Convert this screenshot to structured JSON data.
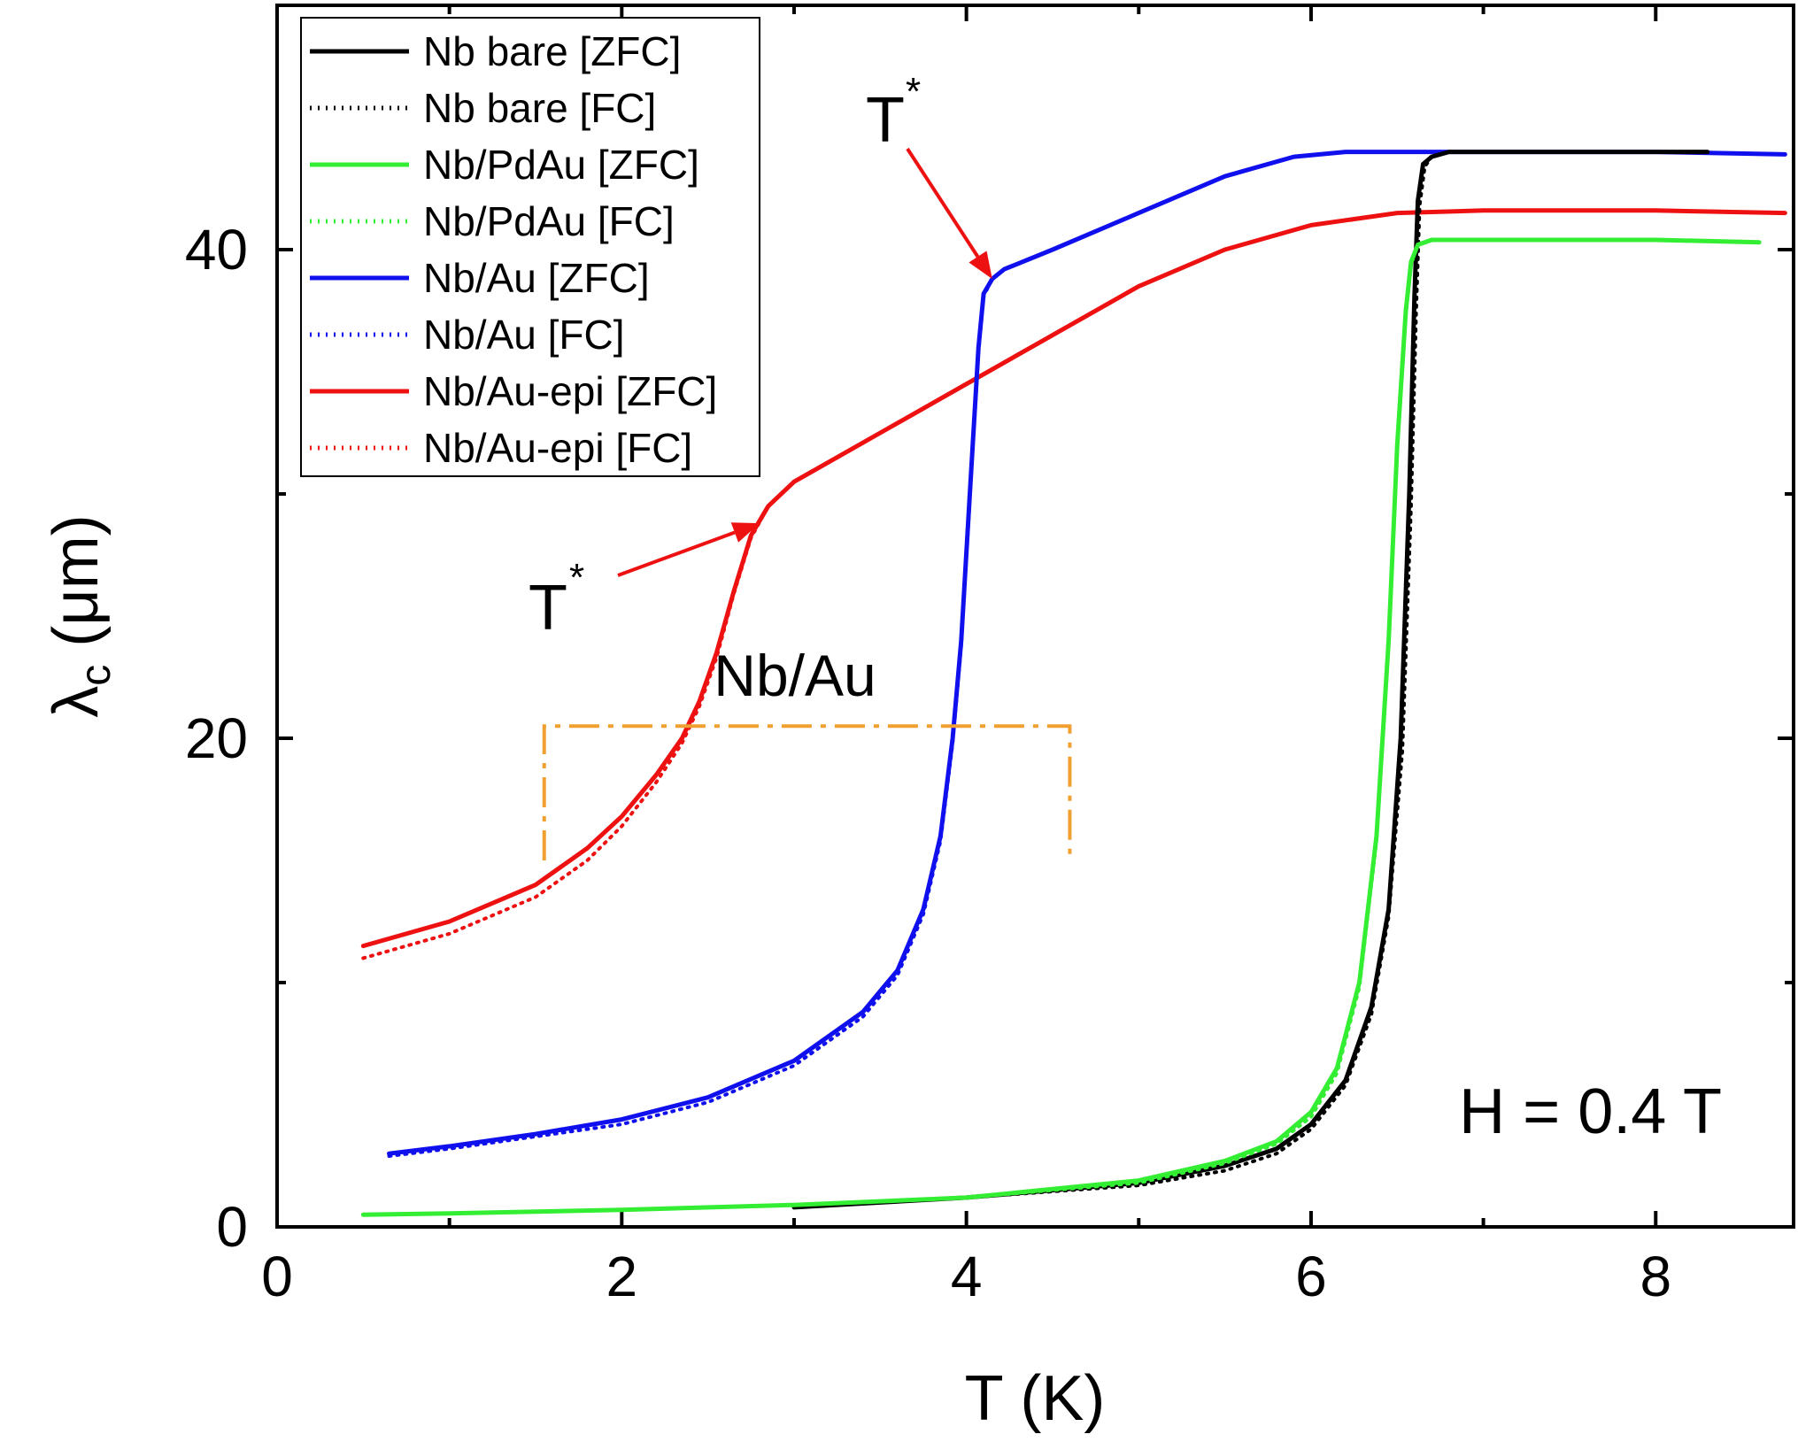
{
  "chart_data": {
    "type": "line",
    "title": "",
    "xlabel": "T (K)",
    "ylabel_symbol": "λ",
    "ylabel_subscript": "c",
    "ylabel_unit": " (μm)",
    "xlim": [
      0,
      8.8
    ],
    "ylim": [
      0,
      50
    ],
    "xticks": [
      0,
      2,
      4,
      6,
      8
    ],
    "yticks": [
      0,
      20,
      40
    ],
    "grid": false,
    "legend_position": "top-left",
    "series": [
      {
        "name": "Nb bare [ZFC]",
        "color": "#000000",
        "style": "solid",
        "x": [
          3.0,
          4.0,
          5.0,
          5.5,
          5.8,
          6.0,
          6.2,
          6.35,
          6.45,
          6.52,
          6.57,
          6.6,
          6.62,
          6.65,
          6.7,
          6.8,
          7.2,
          8.0,
          8.3
        ],
        "y": [
          0.8,
          1.2,
          1.8,
          2.5,
          3.2,
          4.2,
          6.0,
          9.0,
          13.0,
          20.0,
          30.0,
          38.0,
          42.0,
          43.5,
          43.8,
          44.0,
          44.0,
          44.0,
          44.0
        ]
      },
      {
        "name": "Nb bare [FC]",
        "color": "#000000",
        "style": "dotted",
        "x": [
          3.0,
          4.0,
          5.0,
          5.5,
          5.8,
          6.0,
          6.2,
          6.35,
          6.45,
          6.53,
          6.58,
          6.61,
          6.63,
          6.66,
          6.7,
          6.8,
          7.2,
          8.0,
          8.3
        ],
        "y": [
          0.8,
          1.2,
          1.7,
          2.3,
          3.0,
          4.0,
          5.8,
          8.7,
          12.7,
          19.5,
          29.5,
          37.5,
          41.8,
          43.4,
          43.8,
          44.0,
          44.0,
          44.0,
          44.0
        ]
      },
      {
        "name": "Nb/PdAu [ZFC]",
        "color": "#33ee33",
        "style": "solid",
        "x": [
          0.5,
          1.0,
          2.0,
          3.0,
          4.0,
          5.0,
          5.5,
          5.8,
          6.0,
          6.15,
          6.28,
          6.38,
          6.45,
          6.5,
          6.55,
          6.58,
          6.62,
          6.7,
          7.0,
          8.0,
          8.6
        ],
        "y": [
          0.5,
          0.55,
          0.7,
          0.9,
          1.2,
          1.9,
          2.7,
          3.5,
          4.7,
          6.5,
          10.0,
          16.0,
          24.0,
          32.0,
          37.5,
          39.5,
          40.2,
          40.4,
          40.4,
          40.4,
          40.3
        ]
      },
      {
        "name": "Nb/PdAu [FC]",
        "color": "#33ee33",
        "style": "dotted",
        "x": [
          0.5,
          1.0,
          2.0,
          3.0,
          4.0,
          5.0,
          5.5,
          5.8,
          6.0,
          6.15,
          6.28,
          6.38,
          6.45,
          6.5,
          6.55,
          6.58,
          6.62,
          6.7,
          7.0,
          8.0,
          8.6
        ],
        "y": [
          0.5,
          0.55,
          0.7,
          0.9,
          1.2,
          1.8,
          2.6,
          3.4,
          4.5,
          6.3,
          9.8,
          15.8,
          23.8,
          31.8,
          37.3,
          39.4,
          40.2,
          40.4,
          40.4,
          40.4,
          40.3
        ]
      },
      {
        "name": "Nb/Au [ZFC]",
        "color": "#1010ee",
        "style": "solid",
        "x": [
          0.65,
          1.0,
          1.5,
          2.0,
          2.5,
          3.0,
          3.4,
          3.6,
          3.75,
          3.85,
          3.92,
          3.97,
          4.02,
          4.07,
          4.1,
          4.15,
          4.22,
          4.5,
          5.0,
          5.5,
          5.9,
          6.2,
          7.0,
          8.0,
          8.75
        ],
        "y": [
          3.0,
          3.3,
          3.8,
          4.4,
          5.3,
          6.8,
          8.8,
          10.5,
          13.0,
          16.0,
          20.0,
          24.0,
          30.0,
          36.0,
          38.2,
          38.8,
          39.2,
          40.0,
          41.5,
          43.0,
          43.8,
          44.0,
          44.0,
          44.0,
          43.9
        ]
      },
      {
        "name": "Nb/Au [FC]",
        "color": "#1010ee",
        "style": "dotted",
        "x": [
          0.65,
          1.0,
          1.5,
          2.0,
          2.5,
          3.0,
          3.4,
          3.6,
          3.75,
          3.85,
          3.92,
          3.97,
          4.02,
          4.07,
          4.1,
          4.15,
          4.22,
          4.5,
          5.0,
          5.5,
          5.9,
          6.2,
          7.0,
          8.0,
          8.75
        ],
        "y": [
          2.9,
          3.2,
          3.7,
          4.2,
          5.1,
          6.6,
          8.6,
          10.3,
          12.8,
          15.8,
          19.8,
          23.8,
          29.8,
          35.8,
          38.1,
          38.8,
          39.2,
          40.0,
          41.5,
          43.0,
          43.8,
          44.0,
          44.0,
          44.0,
          43.9
        ]
      },
      {
        "name": "Nb/Au-epi [ZFC]",
        "color": "#ee1111",
        "style": "solid",
        "x": [
          0.5,
          1.0,
          1.5,
          1.8,
          2.0,
          2.2,
          2.35,
          2.45,
          2.55,
          2.65,
          2.75,
          2.85,
          3.0,
          3.5,
          4.0,
          4.5,
          5.0,
          5.5,
          6.0,
          6.5,
          7.0,
          8.0,
          8.75
        ],
        "y": [
          11.5,
          12.5,
          14.0,
          15.5,
          16.8,
          18.5,
          20.0,
          21.5,
          23.5,
          26.0,
          28.3,
          29.5,
          30.5,
          32.5,
          34.5,
          36.5,
          38.5,
          40.0,
          41.0,
          41.5,
          41.6,
          41.6,
          41.5
        ]
      },
      {
        "name": "Nb/Au-epi [FC]",
        "color": "#ee1111",
        "style": "dotted",
        "x": [
          0.5,
          1.0,
          1.5,
          1.8,
          2.0,
          2.2,
          2.35,
          2.45,
          2.55,
          2.65,
          2.75,
          2.85,
          3.0,
          3.5,
          4.0,
          4.5,
          5.0,
          5.5,
          6.0,
          6.5,
          7.0,
          8.0,
          8.75
        ],
        "y": [
          11.0,
          12.0,
          13.5,
          15.0,
          16.4,
          18.2,
          19.8,
          21.3,
          23.3,
          25.9,
          28.2,
          29.5,
          30.5,
          32.5,
          34.5,
          36.5,
          38.5,
          40.0,
          41.0,
          41.5,
          41.6,
          41.6,
          41.5
        ]
      }
    ],
    "annotations": {
      "tstar_top": {
        "label": "T",
        "sup": "*",
        "arrow_to": [
          4.15,
          38.8
        ],
        "color": "#ee1111"
      },
      "tstar_low": {
        "label": "T",
        "sup": "*",
        "arrow_to": [
          2.8,
          28.8
        ],
        "color": "#ee1111"
      },
      "bracket": {
        "label": "Nb/Au",
        "x_left": 1.55,
        "x_right": 4.6,
        "y_top": 20.5,
        "y_bottom": 15.0,
        "color": "#f0a030"
      },
      "field": "H = 0.4 T"
    }
  }
}
